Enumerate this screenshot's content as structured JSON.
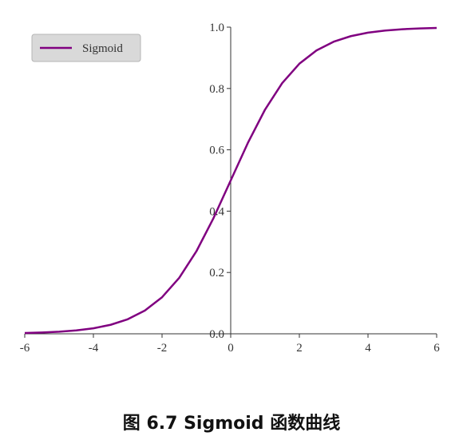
{
  "caption": "图 6.7 Sigmoid 函数曲线",
  "chart_data": {
    "type": "line",
    "title": "",
    "xlabel": "",
    "ylabel": "",
    "xlim": [
      -6,
      6
    ],
    "ylim": [
      0,
      1
    ],
    "x_ticks": [
      -6,
      -4,
      -2,
      0,
      2,
      4,
      6
    ],
    "x_tick_labels": [
      "-6",
      "-4",
      "-2",
      "0",
      "2",
      "4",
      "6"
    ],
    "y_ticks": [
      0.0,
      0.2,
      0.4,
      0.6,
      0.8,
      1.0
    ],
    "y_tick_labels": [
      "0.0",
      "0.2",
      "0.4",
      "0.6",
      "0.8",
      "1.0"
    ],
    "grid": false,
    "legend_position": "top-left",
    "series": [
      {
        "name": "Sigmoid",
        "color": "#800080",
        "x": [
          -6,
          -5.5,
          -5,
          -4.5,
          -4,
          -3.5,
          -3,
          -2.5,
          -2,
          -1.5,
          -1,
          -0.5,
          0,
          0.5,
          1,
          1.5,
          2,
          2.5,
          3,
          3.5,
          4,
          4.5,
          5,
          5.5,
          6
        ],
        "y": [
          0.0025,
          0.0041,
          0.0067,
          0.011,
          0.018,
          0.0293,
          0.0474,
          0.0759,
          0.1192,
          0.1824,
          0.2689,
          0.3775,
          0.5,
          0.6225,
          0.7311,
          0.8176,
          0.8808,
          0.9241,
          0.9526,
          0.9707,
          0.982,
          0.989,
          0.9933,
          0.9959,
          0.9975
        ]
      }
    ]
  }
}
